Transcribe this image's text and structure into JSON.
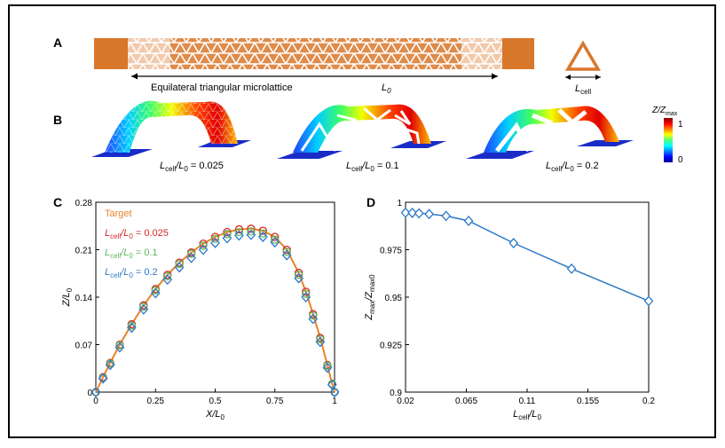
{
  "panels": {
    "a": {
      "label": "A",
      "caption": "Equilateral triangular microlattice",
      "length_label": "L",
      "length_sub": "0",
      "cell_label": "L",
      "cell_sub": "cell"
    },
    "b": {
      "label": "B",
      "colorbar": {
        "title_z": "Z/Z",
        "title_sub": "max",
        "max_label": "1",
        "min_label": "0"
      },
      "samples": [
        {
          "prefix": "L",
          "sub1": "cell",
          "mid": "/L",
          "sub2": "0",
          "value": " = 0.025"
        },
        {
          "prefix": "L",
          "sub1": "cell",
          "mid": "/L",
          "sub2": "0",
          "value": " = 0.1"
        },
        {
          "prefix": "L",
          "sub1": "cell",
          "mid": "/L",
          "sub2": "0",
          "value": " = 0.2"
        }
      ]
    },
    "c": {
      "label": "C"
    },
    "d": {
      "label": "D"
    }
  },
  "colors": {
    "orange": "#d9772a",
    "red": "#d62728",
    "green": "#5cb85c",
    "blue": "#2e78c8",
    "target": "#e8832b",
    "frame": "#000000"
  },
  "chart_data": [
    {
      "type": "scatter",
      "panel": "C",
      "xlabel": "X/L0",
      "ylabel": "Z/L0",
      "xlim": [
        0,
        1
      ],
      "ylim": [
        0,
        0.28
      ],
      "x_ticks": [
        "0",
        "0.25",
        "0.5",
        "0.75",
        "1"
      ],
      "y_ticks": [
        "0",
        "0.07",
        "0.14",
        "0.21",
        "0.28"
      ],
      "legend": [
        {
          "name": "Target",
          "color": "#e8832b"
        },
        {
          "name": "Lcell/L0 = 0.025",
          "color": "#d62728"
        },
        {
          "name": "Lcell/L0 = 0.1",
          "color": "#5cb85c"
        },
        {
          "name": "Lcell/L0 = 0.2",
          "color": "#2e78c8"
        }
      ],
      "series": [
        {
          "name": "Target",
          "marker": "line",
          "color": "#e8832b",
          "x": [
            0,
            0.03,
            0.06,
            0.1,
            0.15,
            0.2,
            0.25,
            0.3,
            0.35,
            0.4,
            0.45,
            0.5,
            0.55,
            0.6,
            0.65,
            0.7,
            0.75,
            0.8,
            0.85,
            0.88,
            0.91,
            0.94,
            0.97,
            0.99,
            1.0
          ],
          "y": [
            0,
            0.022,
            0.043,
            0.07,
            0.1,
            0.128,
            0.152,
            0.173,
            0.191,
            0.206,
            0.219,
            0.229,
            0.236,
            0.24,
            0.241,
            0.238,
            0.229,
            0.21,
            0.176,
            0.148,
            0.115,
            0.08,
            0.04,
            0.012,
            0
          ]
        },
        {
          "name": "Lcell/L0 = 0.025",
          "marker": "circle",
          "color": "#d62728",
          "x": [
            0,
            0.03,
            0.06,
            0.1,
            0.15,
            0.2,
            0.25,
            0.3,
            0.35,
            0.4,
            0.45,
            0.5,
            0.55,
            0.6,
            0.65,
            0.7,
            0.75,
            0.8,
            0.85,
            0.88,
            0.91,
            0.94,
            0.97,
            0.99,
            1.0
          ],
          "y": [
            0,
            0.022,
            0.043,
            0.07,
            0.1,
            0.128,
            0.152,
            0.173,
            0.191,
            0.206,
            0.219,
            0.229,
            0.236,
            0.24,
            0.241,
            0.238,
            0.229,
            0.21,
            0.176,
            0.148,
            0.115,
            0.08,
            0.04,
            0.012,
            0
          ]
        },
        {
          "name": "Lcell/L0 = 0.1",
          "marker": "circle",
          "color": "#5cb85c",
          "x": [
            0,
            0.03,
            0.06,
            0.1,
            0.15,
            0.2,
            0.25,
            0.3,
            0.35,
            0.4,
            0.45,
            0.5,
            0.55,
            0.6,
            0.65,
            0.7,
            0.75,
            0.8,
            0.85,
            0.88,
            0.91,
            0.94,
            0.97,
            0.99,
            1.0
          ],
          "y": [
            0,
            0.021,
            0.042,
            0.069,
            0.098,
            0.126,
            0.15,
            0.171,
            0.189,
            0.204,
            0.216,
            0.226,
            0.233,
            0.236,
            0.237,
            0.234,
            0.225,
            0.207,
            0.173,
            0.145,
            0.113,
            0.078,
            0.039,
            0.012,
            0
          ]
        },
        {
          "name": "Lcell/L0 = 0.2",
          "marker": "diamond",
          "color": "#2e78c8",
          "x": [
            0,
            0.03,
            0.06,
            0.1,
            0.15,
            0.2,
            0.25,
            0.3,
            0.35,
            0.4,
            0.45,
            0.5,
            0.55,
            0.6,
            0.65,
            0.7,
            0.75,
            0.8,
            0.85,
            0.88,
            0.91,
            0.94,
            0.97,
            0.99,
            1.0
          ],
          "y": [
            0,
            0.02,
            0.04,
            0.066,
            0.095,
            0.122,
            0.146,
            0.166,
            0.184,
            0.198,
            0.21,
            0.22,
            0.227,
            0.231,
            0.232,
            0.229,
            0.221,
            0.202,
            0.168,
            0.14,
            0.108,
            0.074,
            0.036,
            0.011,
            0
          ]
        }
      ]
    },
    {
      "type": "line",
      "panel": "D",
      "xlabel": "Lcell/L0",
      "ylabel": "Zmax/Zmax0",
      "xlim": [
        0.02,
        0.2
      ],
      "ylim": [
        0.9,
        1.0
      ],
      "x_ticks": [
        "0.02",
        "0.065",
        "0.11",
        "0.155",
        "0.2"
      ],
      "y_ticks": [
        "0.9",
        "0.925",
        "0.95",
        "0.975",
        "1"
      ],
      "series": [
        {
          "name": "Zmax/Zmax0",
          "marker": "diamond",
          "color": "#2e78c8",
          "x": [
            0.02,
            0.025,
            0.03,
            0.0375,
            0.05,
            0.0667,
            0.1,
            0.1429,
            0.2
          ],
          "y": [
            0.9945,
            0.9944,
            0.9942,
            0.9938,
            0.9928,
            0.9902,
            0.9785,
            0.965,
            0.948
          ]
        }
      ]
    }
  ]
}
